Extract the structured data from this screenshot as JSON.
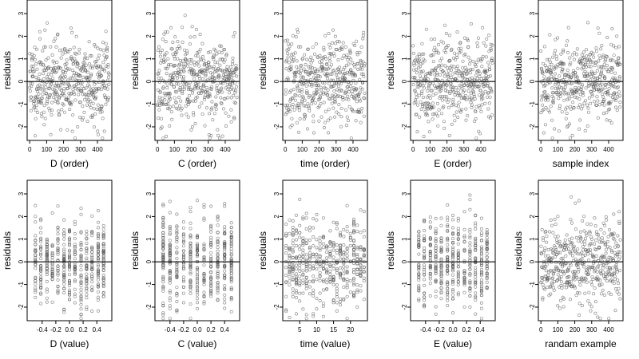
{
  "chart_data": [
    {
      "type": "scatter",
      "xlabel": "D (order)",
      "ylabel": "residuals",
      "xlim": [
        -15,
        485
      ],
      "ylim": [
        -2.6,
        3.6
      ],
      "x_ticks": [
        "0",
        "100",
        "200",
        "300",
        "400"
      ],
      "x_tick_values": [
        0,
        100,
        200,
        300,
        400
      ],
      "y_ticks": [
        "-2",
        "-1",
        "0",
        "1",
        "2",
        "3"
      ],
      "y_tick_values": [
        -2,
        -1,
        0,
        1,
        2,
        3
      ],
      "hline": 0,
      "points": {
        "generator": "index",
        "n": 470,
        "seed": 11
      }
    },
    {
      "type": "scatter",
      "xlabel": "C (order)",
      "ylabel": "residuals",
      "xlim": [
        -15,
        485
      ],
      "ylim": [
        -2.6,
        3.6
      ],
      "x_ticks": [
        "0",
        "100",
        "200",
        "300",
        "400"
      ],
      "x_tick_values": [
        0,
        100,
        200,
        300,
        400
      ],
      "y_ticks": [
        "-2",
        "-1",
        "0",
        "1",
        "2",
        "3"
      ],
      "y_tick_values": [
        -2,
        -1,
        0,
        1,
        2,
        3
      ],
      "hline": 0,
      "points": {
        "generator": "index",
        "n": 470,
        "seed": 23
      }
    },
    {
      "type": "scatter",
      "xlabel": "time (order)",
      "ylabel": "residuals",
      "xlim": [
        -15,
        485
      ],
      "ylim": [
        -2.6,
        3.6
      ],
      "x_ticks": [
        "0",
        "100",
        "200",
        "300",
        "400"
      ],
      "x_tick_values": [
        0,
        100,
        200,
        300,
        400
      ],
      "y_ticks": [
        "-2",
        "-1",
        "0",
        "1",
        "2",
        "3"
      ],
      "y_tick_values": [
        -2,
        -1,
        0,
        1,
        2,
        3
      ],
      "hline": 0,
      "points": {
        "generator": "index",
        "n": 470,
        "seed": 37
      }
    },
    {
      "type": "scatter",
      "xlabel": "E (order)",
      "ylabel": "residuals",
      "xlim": [
        -15,
        485
      ],
      "ylim": [
        -2.6,
        3.6
      ],
      "x_ticks": [
        "0",
        "100",
        "200",
        "300",
        "400"
      ],
      "x_tick_values": [
        0,
        100,
        200,
        300,
        400
      ],
      "y_ticks": [
        "-2",
        "-1",
        "0",
        "1",
        "2",
        "3"
      ],
      "y_tick_values": [
        -2,
        -1,
        0,
        1,
        2,
        3
      ],
      "hline": 0,
      "points": {
        "generator": "index",
        "n": 470,
        "seed": 41
      }
    },
    {
      "type": "scatter",
      "xlabel": "sample index",
      "ylabel": "residuals",
      "xlim": [
        -15,
        485
      ],
      "ylim": [
        -2.6,
        3.6
      ],
      "x_ticks": [
        "0",
        "100",
        "200",
        "300",
        "400"
      ],
      "x_tick_values": [
        0,
        100,
        200,
        300,
        400
      ],
      "y_ticks": [
        "-2",
        "-1",
        "0",
        "1",
        "2",
        "3"
      ],
      "y_tick_values": [
        -2,
        -1,
        0,
        1,
        2,
        3
      ],
      "hline": 0,
      "points": {
        "generator": "index",
        "n": 470,
        "seed": 53
      }
    },
    {
      "type": "scatter",
      "xlabel": "D (value)",
      "ylabel": "residuals",
      "xlim": [
        -0.62,
        0.62
      ],
      "ylim": [
        -2.6,
        3.6
      ],
      "x_ticks": [
        "-0.4",
        "-0.2",
        "0.0",
        "0.2",
        "0.4"
      ],
      "x_tick_values": [
        -0.4,
        -0.2,
        0,
        0.2,
        0.4
      ],
      "y_ticks": [
        "-2",
        "-1",
        "0",
        "1",
        "2",
        "3"
      ],
      "y_tick_values": [
        -2,
        -1,
        0,
        1,
        2,
        3
      ],
      "hline": 0,
      "points": {
        "generator": "levels",
        "levels": [
          -0.5,
          -0.42,
          -0.33,
          -0.25,
          -0.17,
          -0.08,
          0,
          0.08,
          0.17,
          0.25,
          0.33,
          0.42,
          0.5
        ],
        "n": 470,
        "seed": 61
      }
    },
    {
      "type": "scatter",
      "xlabel": "C (value)",
      "ylabel": "residuals",
      "xlim": [
        -0.62,
        0.62
      ],
      "ylim": [
        -2.6,
        3.6
      ],
      "x_ticks": [
        "-0.4",
        "-0.2",
        "0.0",
        "0.2",
        "0.4"
      ],
      "x_tick_values": [
        -0.4,
        -0.2,
        0,
        0.2,
        0.4
      ],
      "y_ticks": [
        "-2",
        "-1",
        "0",
        "1",
        "2",
        "3"
      ],
      "y_tick_values": [
        -2,
        -1,
        0,
        1,
        2,
        3
      ],
      "hline": 0,
      "points": {
        "generator": "levels",
        "levels": [
          -0.5,
          -0.4,
          -0.3,
          -0.2,
          -0.1,
          0,
          0.1,
          0.2,
          0.3,
          0.4,
          0.5
        ],
        "n": 470,
        "seed": 67
      }
    },
    {
      "type": "scatter",
      "xlabel": "time (value)",
      "ylabel": "residuals",
      "xlim": [
        0,
        25
      ],
      "ylim": [
        -2.6,
        3.6
      ],
      "x_ticks": [
        "5",
        "10",
        "15",
        "20"
      ],
      "x_tick_values": [
        5,
        10,
        15,
        20
      ],
      "y_ticks": [
        "-2",
        "-1",
        "0",
        "1",
        "2",
        "3"
      ],
      "y_tick_values": [
        -2,
        -1,
        0,
        1,
        2,
        3
      ],
      "hline": 0,
      "points": {
        "generator": "levels",
        "levels": [
          1,
          2,
          3,
          4,
          5,
          6,
          7,
          8,
          9,
          10,
          11,
          12,
          13,
          14,
          15,
          16,
          17,
          18,
          19,
          20,
          21,
          22,
          23,
          24
        ],
        "n": 470,
        "seed": 71
      }
    },
    {
      "type": "scatter",
      "xlabel": "E (value)",
      "ylabel": "residuals",
      "xlim": [
        -0.62,
        0.62
      ],
      "ylim": [
        -2.6,
        3.6
      ],
      "x_ticks": [
        "-0.4",
        "-0.2",
        "0.0",
        "0.2",
        "0.4"
      ],
      "x_tick_values": [
        -0.4,
        -0.2,
        0,
        0.2,
        0.4
      ],
      "y_ticks": [
        "-2",
        "-1",
        "0",
        "1",
        "2",
        "3"
      ],
      "y_tick_values": [
        -2,
        -1,
        0,
        1,
        2,
        3
      ],
      "hline": 0,
      "points": {
        "generator": "levels",
        "levels": [
          -0.5,
          -0.42,
          -0.33,
          -0.25,
          -0.17,
          -0.08,
          0,
          0.08,
          0.17,
          0.25,
          0.33,
          0.42,
          0.5
        ],
        "n": 470,
        "seed": 79
      }
    },
    {
      "type": "scatter",
      "xlabel": "randam example",
      "ylabel": "residuals",
      "xlim": [
        -15,
        485
      ],
      "ylim": [
        -2.6,
        3.6
      ],
      "x_ticks": [
        "0",
        "100",
        "200",
        "300",
        "400"
      ],
      "x_tick_values": [
        0,
        100,
        200,
        300,
        400
      ],
      "y_ticks": [
        "-2",
        "-1",
        "0",
        "1",
        "2",
        "3"
      ],
      "y_tick_values": [
        -2,
        -1,
        0,
        1,
        2,
        3
      ],
      "hline": 0,
      "points": {
        "generator": "index",
        "n": 470,
        "seed": 89
      }
    }
  ]
}
